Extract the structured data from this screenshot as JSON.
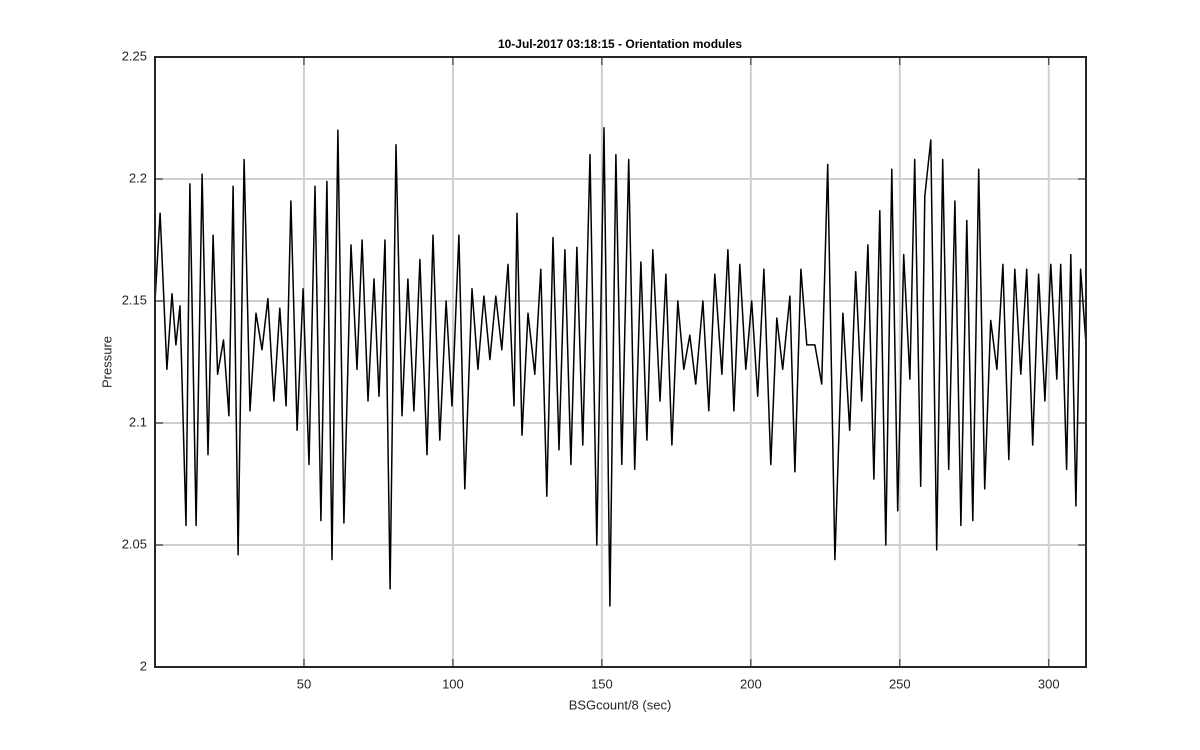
{
  "chart_data": {
    "type": "line",
    "title": "10-Jul-2017 03:18:15 - Orientation modules",
    "xlabel": "BSGcount/8 (sec)",
    "ylabel": "Pressure",
    "xlim": [
      0,
      312.5
    ],
    "ylim": [
      2,
      2.25
    ],
    "xticks": [
      50,
      100,
      150,
      200,
      250,
      300
    ],
    "yticks": [
      2,
      2.05,
      2.1,
      2.15,
      2.2,
      2.25
    ],
    "grid": true,
    "series": [
      {
        "color": "#000000",
        "x": [
          0,
          1.7,
          4,
          5.7,
          7,
          8.4,
          10.4,
          11.7,
          13.8,
          15.8,
          17.8,
          19.5,
          21,
          23,
          24.8,
          26.2,
          27.9,
          29.9,
          31.9,
          33.9,
          35.9,
          37.9,
          39.9,
          41.9,
          44,
          45.6,
          47.7,
          49.7,
          51.7,
          53.7,
          55.7,
          57.7,
          59.4,
          61.4,
          63.4,
          65.8,
          67.8,
          69.5,
          71.5,
          73.5,
          75.2,
          77.2,
          78.9,
          80.9,
          82.9,
          84.9,
          86.9,
          88.9,
          91.3,
          93.3,
          95.6,
          97.7,
          99.7,
          102,
          104,
          106.4,
          108.4,
          110.4,
          112.4,
          114.4,
          116.4,
          118.5,
          120.5,
          121.5,
          123.2,
          125.2,
          127.5,
          129.5,
          131.5,
          133.6,
          135.6,
          137.6,
          139.6,
          141.6,
          143.6,
          146,
          148.3,
          150.7,
          152.7,
          154.7,
          156.7,
          159,
          161,
          163.1,
          165.1,
          167.1,
          169.5,
          171.5,
          173.5,
          175.5,
          177.5,
          179.5,
          181.5,
          183.9,
          185.9,
          187.9,
          190.3,
          192.3,
          194.3,
          196.3,
          198.3,
          200.3,
          202.3,
          204.4,
          206.7,
          208.7,
          210.7,
          213.1,
          214.8,
          216.8,
          218.8,
          221.5,
          223.8,
          225.8,
          228.2,
          230.9,
          233.2,
          235.2,
          237.2,
          239.3,
          241.3,
          243.3,
          245.3,
          247.3,
          249.3,
          251.3,
          253.4,
          255,
          257,
          258.4,
          260.4,
          262.4,
          264.4,
          266.4,
          268.5,
          270.5,
          272.5,
          274.5,
          276.5,
          278.5,
          280.5,
          282.6,
          284.6,
          286.6,
          288.6,
          290.6,
          292.6,
          294.6,
          296.6,
          298.7,
          300.7,
          302.7,
          304,
          306,
          307.4,
          309.1,
          310.7,
          312.4
        ],
        "values": [
          2.15,
          2.186,
          2.122,
          2.153,
          2.132,
          2.148,
          2.058,
          2.198,
          2.058,
          2.202,
          2.087,
          2.177,
          2.12,
          2.134,
          2.103,
          2.197,
          2.046,
          2.208,
          2.105,
          2.145,
          2.13,
          2.151,
          2.109,
          2.147,
          2.107,
          2.191,
          2.097,
          2.155,
          2.083,
          2.197,
          2.06,
          2.199,
          2.044,
          2.22,
          2.059,
          2.173,
          2.122,
          2.175,
          2.109,
          2.159,
          2.111,
          2.175,
          2.032,
          2.214,
          2.103,
          2.159,
          2.105,
          2.167,
          2.087,
          2.177,
          2.093,
          2.15,
          2.107,
          2.177,
          2.073,
          2.155,
          2.122,
          2.152,
          2.126,
          2.152,
          2.13,
          2.165,
          2.107,
          2.186,
          2.095,
          2.145,
          2.12,
          2.163,
          2.07,
          2.176,
          2.089,
          2.171,
          2.083,
          2.172,
          2.091,
          2.21,
          2.05,
          2.221,
          2.025,
          2.21,
          2.083,
          2.208,
          2.081,
          2.166,
          2.093,
          2.171,
          2.109,
          2.161,
          2.091,
          2.15,
          2.122,
          2.136,
          2.116,
          2.15,
          2.105,
          2.161,
          2.12,
          2.171,
          2.105,
          2.165,
          2.122,
          2.15,
          2.111,
          2.163,
          2.083,
          2.143,
          2.122,
          2.152,
          2.08,
          2.163,
          2.132,
          2.132,
          2.116,
          2.206,
          2.044,
          2.145,
          2.097,
          2.162,
          2.109,
          2.173,
          2.077,
          2.187,
          2.05,
          2.204,
          2.064,
          2.169,
          2.118,
          2.208,
          2.074,
          2.193,
          2.216,
          2.048,
          2.208,
          2.081,
          2.191,
          2.058,
          2.183,
          2.06,
          2.204,
          2.073,
          2.142,
          2.122,
          2.165,
          2.085,
          2.163,
          2.12,
          2.163,
          2.091,
          2.161,
          2.109,
          2.165,
          2.118,
          2.165,
          2.081,
          2.169,
          2.066,
          2.163,
          2.134
        ]
      }
    ]
  }
}
